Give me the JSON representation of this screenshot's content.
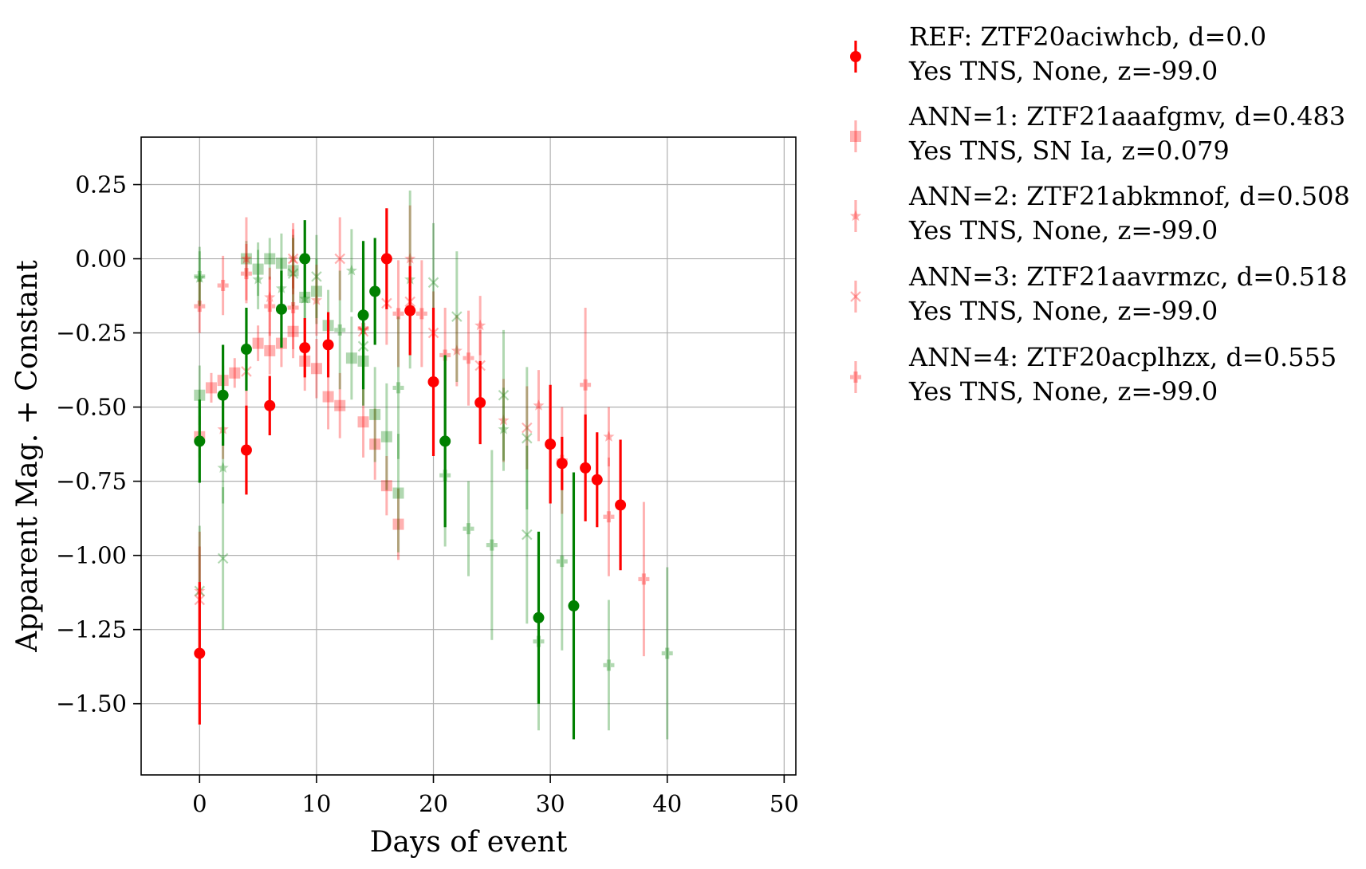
{
  "chart_data": {
    "type": "scatter",
    "title": "",
    "xlabel": "Days of event",
    "ylabel": "Apparent Mag. + Constant",
    "xlim": [
      -5,
      51
    ],
    "ylim": [
      -1.74,
      0.41
    ],
    "y_inverted": false,
    "grid": true,
    "legend_placement": "outside-right",
    "x_ticks": [
      0,
      10,
      20,
      30,
      40,
      50
    ],
    "x_tick_labels": [
      "0",
      "10",
      "20",
      "30",
      "40",
      "50"
    ],
    "y_ticks": [
      0.25,
      0.0,
      -0.25,
      -0.5,
      -0.75,
      -1.0,
      -1.25,
      -1.5
    ],
    "y_tick_labels": [
      "0.25",
      "0.00",
      "−0.25",
      "−0.50",
      "−0.75",
      "−1.00",
      "−1.25",
      "−1.50"
    ],
    "colors": {
      "r_band": "#ff0000",
      "g_band": "#008000"
    },
    "series": [
      {
        "name": "REF: ZTF20aciwhcb, d=0.0",
        "name2": "Yes TNS, None, z=-99.0",
        "marker": "circle",
        "alpha": 1.0,
        "points": [
          {
            "x": 0,
            "y": -1.33,
            "err": 0.24,
            "band": "r"
          },
          {
            "x": 4,
            "y": -0.645,
            "err": 0.15,
            "band": "r"
          },
          {
            "x": 6,
            "y": -0.495,
            "err": 0.1,
            "band": "r"
          },
          {
            "x": 9,
            "y": -0.3,
            "err": 0.1,
            "band": "r"
          },
          {
            "x": 11,
            "y": -0.29,
            "err": 0.11,
            "band": "r"
          },
          {
            "x": 16,
            "y": 0.0,
            "err": 0.17,
            "band": "r"
          },
          {
            "x": 18,
            "y": -0.175,
            "err": 0.15,
            "band": "r"
          },
          {
            "x": 20,
            "y": -0.415,
            "err": 0.25,
            "band": "r"
          },
          {
            "x": 24,
            "y": -0.485,
            "err": 0.14,
            "band": "r"
          },
          {
            "x": 30,
            "y": -0.625,
            "err": 0.2,
            "band": "r"
          },
          {
            "x": 31,
            "y": -0.69,
            "err": 0.09,
            "band": "r"
          },
          {
            "x": 33,
            "y": -0.705,
            "err": 0.18,
            "band": "r"
          },
          {
            "x": 34,
            "y": -0.745,
            "err": 0.16,
            "band": "r"
          },
          {
            "x": 36,
            "y": -0.83,
            "err": 0.22,
            "band": "r"
          },
          {
            "x": 0,
            "y": -0.615,
            "err": 0.14,
            "band": "g"
          },
          {
            "x": 2,
            "y": -0.46,
            "err": 0.17,
            "band": "g"
          },
          {
            "x": 4,
            "y": -0.305,
            "err": 0.14,
            "band": "g"
          },
          {
            "x": 7,
            "y": -0.17,
            "err": 0.13,
            "band": "g"
          },
          {
            "x": 9,
            "y": 0.0,
            "err": 0.13,
            "band": "g"
          },
          {
            "x": 14,
            "y": -0.19,
            "err": 0.25,
            "band": "g"
          },
          {
            "x": 15,
            "y": -0.11,
            "err": 0.18,
            "band": "g"
          },
          {
            "x": 21,
            "y": -0.615,
            "err": 0.29,
            "band": "g"
          },
          {
            "x": 29,
            "y": -1.21,
            "err": 0.29,
            "band": "g"
          },
          {
            "x": 32,
            "y": -1.17,
            "err": 0.45,
            "band": "g"
          }
        ]
      },
      {
        "name": "ANN=1: ZTF21aaafgmv, d=0.483",
        "name2": "Yes TNS, SN Ia, z=0.079",
        "marker": "square",
        "alpha": 0.3,
        "points": [
          {
            "x": 0,
            "y": -0.6,
            "err": 0.07,
            "band": "r"
          },
          {
            "x": 1,
            "y": -0.435,
            "err": 0.05,
            "band": "r"
          },
          {
            "x": 2,
            "y": -0.41,
            "err": 0.05,
            "band": "r"
          },
          {
            "x": 3,
            "y": -0.385,
            "err": 0.05,
            "band": "r"
          },
          {
            "x": 5,
            "y": -0.285,
            "err": 0.06,
            "band": "r"
          },
          {
            "x": 6,
            "y": -0.31,
            "err": 0.08,
            "band": "r"
          },
          {
            "x": 7,
            "y": -0.285,
            "err": 0.08,
            "band": "r"
          },
          {
            "x": 8,
            "y": -0.245,
            "err": 0.09,
            "band": "r"
          },
          {
            "x": 9,
            "y": -0.345,
            "err": 0.1,
            "band": "r"
          },
          {
            "x": 10,
            "y": -0.37,
            "err": 0.1,
            "band": "r"
          },
          {
            "x": 11,
            "y": -0.465,
            "err": 0.11,
            "band": "r"
          },
          {
            "x": 12,
            "y": -0.495,
            "err": 0.11,
            "band": "r"
          },
          {
            "x": 14,
            "y": -0.55,
            "err": 0.12,
            "band": "r"
          },
          {
            "x": 15,
            "y": -0.625,
            "err": 0.12,
            "band": "r"
          },
          {
            "x": 16,
            "y": -0.765,
            "err": 0.1,
            "band": "r"
          },
          {
            "x": 17,
            "y": -0.895,
            "err": 0.12,
            "band": "r"
          },
          {
            "x": 0,
            "y": -0.46,
            "err": 0.1,
            "band": "g"
          },
          {
            "x": 4,
            "y": 0.0,
            "err": 0.06,
            "band": "g"
          },
          {
            "x": 5,
            "y": -0.035,
            "err": 0.09,
            "band": "g"
          },
          {
            "x": 6,
            "y": 0.0,
            "err": 0.07,
            "band": "g"
          },
          {
            "x": 7,
            "y": -0.015,
            "err": 0.1,
            "band": "g"
          },
          {
            "x": 8,
            "y": -0.04,
            "err": 0.12,
            "band": "g"
          },
          {
            "x": 9,
            "y": -0.13,
            "err": 0.11,
            "band": "g"
          },
          {
            "x": 10,
            "y": -0.11,
            "err": 0.11,
            "band": "g"
          },
          {
            "x": 11,
            "y": -0.225,
            "err": 0.12,
            "band": "g"
          },
          {
            "x": 13,
            "y": -0.335,
            "err": 0.14,
            "band": "g"
          },
          {
            "x": 14,
            "y": -0.345,
            "err": 0.15,
            "band": "g"
          },
          {
            "x": 15,
            "y": -0.525,
            "err": 0.16,
            "band": "g"
          },
          {
            "x": 16,
            "y": -0.6,
            "err": 0.18,
            "band": "g"
          },
          {
            "x": 17,
            "y": -0.79,
            "err": 0.2,
            "band": "g"
          }
        ]
      },
      {
        "name": "ANN=2: ZTF21abkmnof, d=0.508",
        "name2": "Yes TNS, None, z=-99.0",
        "marker": "star",
        "alpha": 0.3,
        "points": [
          {
            "x": 0,
            "y": -1.12,
            "err": 0.2,
            "band": "r"
          },
          {
            "x": 2,
            "y": -0.575,
            "err": 0.1,
            "band": "r"
          },
          {
            "x": 4,
            "y": 0.0,
            "err": 0.14,
            "band": "r"
          },
          {
            "x": 6,
            "y": -0.13,
            "err": 0.1,
            "band": "r"
          },
          {
            "x": 8,
            "y": 0.0,
            "err": 0.12,
            "band": "r"
          },
          {
            "x": 10,
            "y": -0.14,
            "err": 0.12,
            "band": "r"
          },
          {
            "x": 14,
            "y": -0.24,
            "err": 0.14,
            "band": "r"
          },
          {
            "x": 18,
            "y": 0.0,
            "err": 0.18,
            "band": "r"
          },
          {
            "x": 22,
            "y": -0.31,
            "err": 0.12,
            "band": "r"
          },
          {
            "x": 24,
            "y": -0.225,
            "err": 0.1,
            "band": "r"
          },
          {
            "x": 26,
            "y": -0.545,
            "err": 0.14,
            "band": "r"
          },
          {
            "x": 29,
            "y": -0.495,
            "err": 0.12,
            "band": "r"
          },
          {
            "x": 35,
            "y": -0.6,
            "err": 0.1,
            "band": "r"
          },
          {
            "x": 0,
            "y": -0.065,
            "err": 0.09,
            "band": "g"
          },
          {
            "x": 2,
            "y": -0.705,
            "err": 0.12,
            "band": "g"
          },
          {
            "x": 5,
            "y": -0.07,
            "err": 0.1,
            "band": "g"
          },
          {
            "x": 7,
            "y": -0.1,
            "err": 0.1,
            "band": "g"
          },
          {
            "x": 9,
            "y": -0.135,
            "err": 0.14,
            "band": "g"
          },
          {
            "x": 13,
            "y": -0.04,
            "err": 0.14,
            "band": "g"
          },
          {
            "x": 18,
            "y": -0.07,
            "err": 0.3,
            "band": "g"
          },
          {
            "x": 26,
            "y": -0.575,
            "err": 0.14,
            "band": "g"
          }
        ]
      },
      {
        "name": "ANN=3: ZTF21aavrmzc, d=0.518",
        "name2": "Yes TNS, None, z=-99.0",
        "marker": "x",
        "alpha": 0.3,
        "points": [
          {
            "x": 0,
            "y": -1.15,
            "err": 0.18,
            "band": "r"
          },
          {
            "x": 4,
            "y": -0.38,
            "err": 0.12,
            "band": "r"
          },
          {
            "x": 8,
            "y": 0.0,
            "err": 0.1,
            "band": "r"
          },
          {
            "x": 12,
            "y": 0.0,
            "err": 0.14,
            "band": "r"
          },
          {
            "x": 14,
            "y": -0.245,
            "err": 0.12,
            "band": "r"
          },
          {
            "x": 16,
            "y": -0.15,
            "err": 0.14,
            "band": "r"
          },
          {
            "x": 18,
            "y": -0.145,
            "err": 0.14,
            "band": "r"
          },
          {
            "x": 20,
            "y": -0.25,
            "err": 0.14,
            "band": "r"
          },
          {
            "x": 24,
            "y": -0.36,
            "err": 0.12,
            "band": "r"
          },
          {
            "x": 28,
            "y": -0.57,
            "err": 0.14,
            "band": "r"
          },
          {
            "x": 0,
            "y": -1.12,
            "err": 0.22,
            "band": "g"
          },
          {
            "x": 2,
            "y": -1.01,
            "err": 0.24,
            "band": "g"
          },
          {
            "x": 8,
            "y": -0.05,
            "err": 0.12,
            "band": "g"
          },
          {
            "x": 10,
            "y": -0.06,
            "err": 0.14,
            "band": "g"
          },
          {
            "x": 14,
            "y": -0.295,
            "err": 0.2,
            "band": "g"
          },
          {
            "x": 20,
            "y": -0.08,
            "err": 0.2,
            "band": "g"
          },
          {
            "x": 22,
            "y": -0.195,
            "err": 0.22,
            "band": "g"
          },
          {
            "x": 26,
            "y": -0.46,
            "err": 0.22,
            "band": "g"
          },
          {
            "x": 28,
            "y": -0.605,
            "err": 0.24,
            "band": "g"
          },
          {
            "x": 28,
            "y": -0.93,
            "err": 0.3,
            "band": "g"
          }
        ]
      },
      {
        "name": "ANN=4: ZTF20acplhzx, d=0.555",
        "name2": "Yes TNS, None, z=-99.0",
        "marker": "plus",
        "alpha": 0.3,
        "points": [
          {
            "x": 0,
            "y": -0.16,
            "err": 0.09,
            "band": "r"
          },
          {
            "x": 2,
            "y": -0.09,
            "err": 0.1,
            "band": "r"
          },
          {
            "x": 4,
            "y": -0.05,
            "err": 0.1,
            "band": "r"
          },
          {
            "x": 6,
            "y": -0.16,
            "err": 0.1,
            "band": "r"
          },
          {
            "x": 8,
            "y": -0.165,
            "err": 0.14,
            "band": "r"
          },
          {
            "x": 14,
            "y": -0.235,
            "err": 0.16,
            "band": "r"
          },
          {
            "x": 17,
            "y": -0.185,
            "err": 0.18,
            "band": "r"
          },
          {
            "x": 19,
            "y": -0.185,
            "err": 0.18,
            "band": "r"
          },
          {
            "x": 21,
            "y": -0.325,
            "err": 0.16,
            "band": "r"
          },
          {
            "x": 23,
            "y": -0.335,
            "err": 0.16,
            "band": "r"
          },
          {
            "x": 31,
            "y": -0.68,
            "err": 0.18,
            "band": "r"
          },
          {
            "x": 33,
            "y": -0.425,
            "err": 0.26,
            "band": "r"
          },
          {
            "x": 35,
            "y": -0.87,
            "err": 0.2,
            "band": "r"
          },
          {
            "x": 38,
            "y": -1.08,
            "err": 0.26,
            "band": "r"
          },
          {
            "x": 0,
            "y": -0.06,
            "err": 0.1,
            "band": "g"
          },
          {
            "x": 12,
            "y": -0.24,
            "err": 0.2,
            "band": "g"
          },
          {
            "x": 17,
            "y": -0.435,
            "err": 0.24,
            "band": "g"
          },
          {
            "x": 21,
            "y": -0.73,
            "err": 0.24,
            "band": "g"
          },
          {
            "x": 23,
            "y": -0.91,
            "err": 0.16,
            "band": "g"
          },
          {
            "x": 25,
            "y": -0.965,
            "err": 0.32,
            "band": "g"
          },
          {
            "x": 29,
            "y": -1.29,
            "err": 0.3,
            "band": "g"
          },
          {
            "x": 31,
            "y": -1.02,
            "err": 0.3,
            "band": "g"
          },
          {
            "x": 35,
            "y": -1.37,
            "err": 0.22,
            "band": "g"
          },
          {
            "x": 40,
            "y": -1.33,
            "err": 0.29,
            "band": "g"
          }
        ]
      }
    ]
  }
}
